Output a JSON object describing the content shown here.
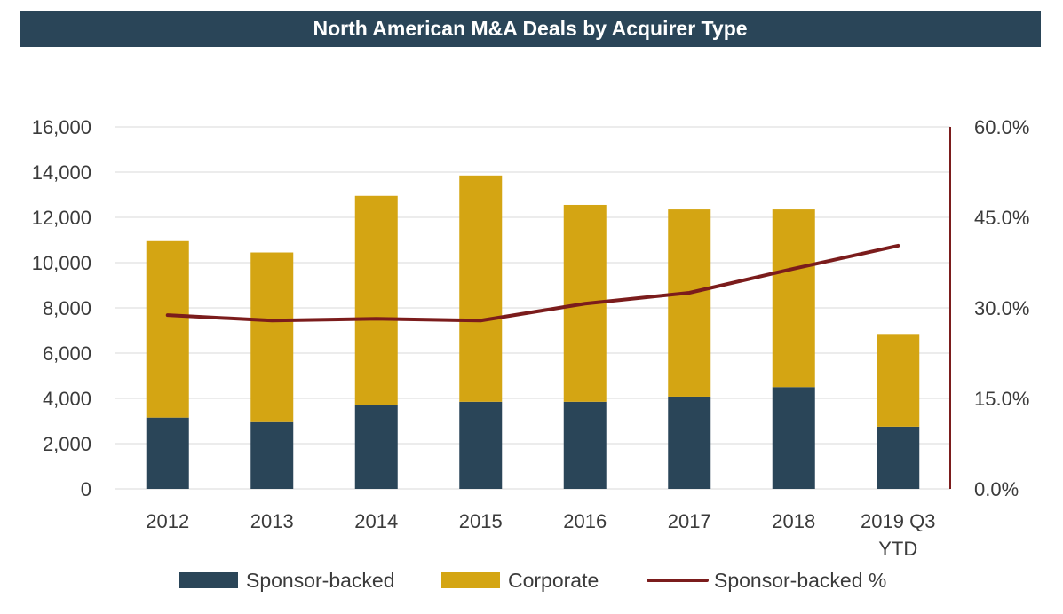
{
  "chart_data": {
    "type": "bar",
    "title": "North American M&A Deals by Acquirer Type",
    "categories": [
      "2012",
      "2013",
      "2014",
      "2015",
      "2016",
      "2017",
      "2018",
      "2019 Q3\nYTD"
    ],
    "series": [
      {
        "name": "Sponsor-backed",
        "kind": "bar",
        "color": "#2a4558",
        "values": [
          3150,
          2950,
          3700,
          3850,
          3850,
          4080,
          4500,
          2750
        ]
      },
      {
        "name": "Corporate",
        "kind": "bar",
        "color": "#d4a513",
        "values": [
          7800,
          7500,
          9250,
          10000,
          8700,
          8270,
          7850,
          4100
        ]
      },
      {
        "name": "Sponsor-backed %",
        "kind": "line",
        "axis": "right",
        "color": "#7b1c1c",
        "values": [
          0.288,
          0.279,
          0.282,
          0.279,
          0.307,
          0.325,
          0.365,
          0.403
        ]
      }
    ],
    "stacked": true,
    "y_left": {
      "min": 0,
      "max": 16000,
      "ticks": [
        0,
        2000,
        4000,
        6000,
        8000,
        10000,
        12000,
        14000,
        16000
      ],
      "tick_labels": [
        "0",
        "2,000",
        "4,000",
        "6,000",
        "8,000",
        "10,000",
        "12,000",
        "14,000",
        "16,000"
      ]
    },
    "y_right": {
      "min": 0,
      "max": 0.6,
      "ticks": [
        0,
        0.15,
        0.3,
        0.45,
        0.6
      ],
      "tick_labels": [
        "0.0%",
        "15.0%",
        "30.0%",
        "45.0%",
        "60.0%"
      ],
      "axis_color": "#7b1c1c"
    },
    "grid": true,
    "legend": {
      "position": "bottom",
      "items": [
        {
          "label": "Sponsor-backed",
          "kind": "box",
          "color": "#2a4558"
        },
        {
          "label": "Corporate",
          "kind": "box",
          "color": "#d4a513"
        },
        {
          "label": "Sponsor-backed %",
          "kind": "line",
          "color": "#7b1c1c"
        }
      ]
    }
  }
}
